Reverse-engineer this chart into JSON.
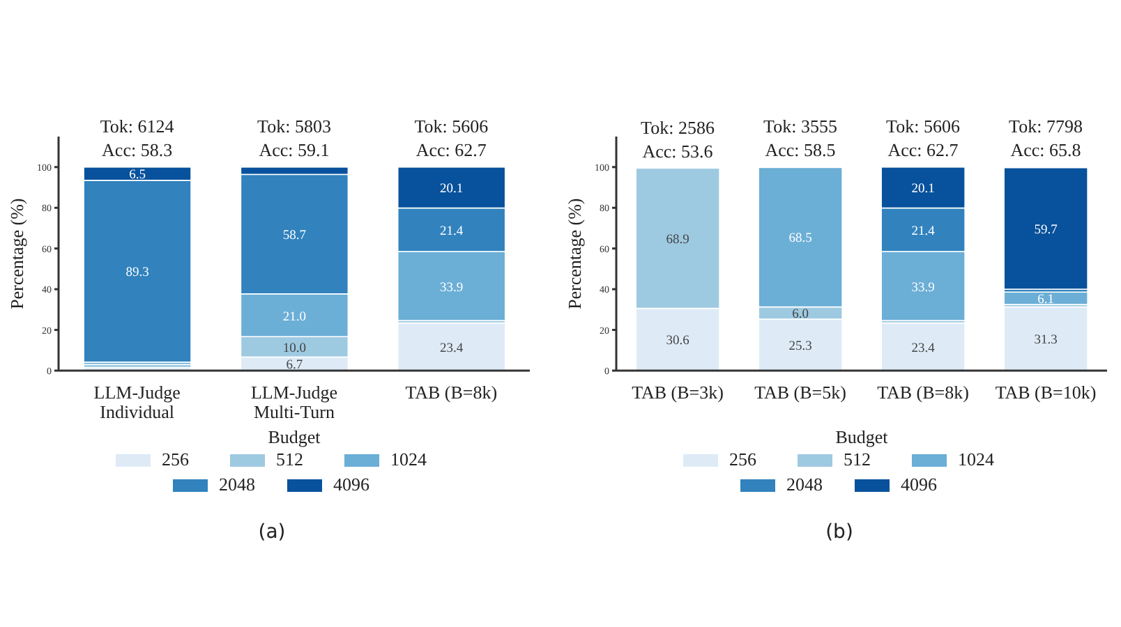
{
  "chart_data": [
    {
      "type": "bar",
      "stacked": true,
      "categories": [
        "LLM-Judge\nIndividual",
        "LLM-Judge\nMulti-Turn",
        "TAB (B=8k)"
      ],
      "xlabel": "Budget",
      "ylabel": "Percentage (%)",
      "ylim": [
        0,
        115
      ],
      "yticks": [
        0,
        20,
        40,
        60,
        80,
        100
      ],
      "legend": "bottom",
      "grid": false,
      "series": [
        {
          "name": "256",
          "color": "#deebf7",
          "values": [
            1.5,
            6.7,
            23.4
          ],
          "value_labels": [
            null,
            "6.7",
            "23.4"
          ]
        },
        {
          "name": "512",
          "color": "#9ecae1",
          "values": [
            1.5,
            10.0,
            1.2
          ],
          "value_labels": [
            null,
            "10.0",
            null
          ]
        },
        {
          "name": "1024",
          "color": "#6baed6",
          "values": [
            1.2,
            21.0,
            33.9
          ],
          "value_labels": [
            null,
            "21.0",
            "33.9"
          ]
        },
        {
          "name": "2048",
          "color": "#3182bd",
          "values": [
            89.3,
            58.7,
            21.4
          ],
          "value_labels": [
            "89.3",
            "58.7",
            "21.4"
          ]
        },
        {
          "name": "4096",
          "color": "#08519c",
          "values": [
            6.5,
            3.6,
            20.1
          ],
          "value_labels": [
            "6.5",
            null,
            "20.1"
          ]
        }
      ],
      "annotations": [
        "Tok: 6124\nAcc: 58.3",
        "Tok: 5803\nAcc: 59.1",
        "Tok: 5606\nAcc: 62.7",
        "(a)"
      ]
    },
    {
      "type": "bar",
      "stacked": true,
      "categories": [
        "TAB (B=3k)",
        "TAB (B=5k)",
        "TAB (B=8k)",
        "TAB (B=10k)"
      ],
      "xlabel": "Budget",
      "ylabel": "Percentage (%)",
      "ylim": [
        0,
        115
      ],
      "yticks": [
        0,
        20,
        40,
        60,
        80,
        100
      ],
      "legend": "bottom",
      "grid": false,
      "series": [
        {
          "name": "256",
          "color": "#deebf7",
          "values": [
            30.6,
            25.3,
            23.4,
            31.3
          ],
          "value_labels": [
            "30.6",
            "25.3",
            "23.4",
            "31.3"
          ]
        },
        {
          "name": "512",
          "color": "#9ecae1",
          "values": [
            68.9,
            6.0,
            1.2,
            1.2
          ],
          "value_labels": [
            "68.9",
            "6.0",
            null,
            null
          ]
        },
        {
          "name": "1024",
          "color": "#6baed6",
          "values": [
            0,
            68.5,
            33.9,
            6.1
          ],
          "value_labels": [
            null,
            "68.5",
            "33.9",
            "6.1"
          ]
        },
        {
          "name": "2048",
          "color": "#3182bd",
          "values": [
            0,
            0,
            21.4,
            1.4
          ],
          "value_labels": [
            null,
            null,
            "21.4",
            null
          ]
        },
        {
          "name": "4096",
          "color": "#08519c",
          "values": [
            0,
            0,
            20.1,
            59.7
          ],
          "value_labels": [
            null,
            null,
            "20.1",
            "59.7"
          ]
        }
      ],
      "annotations": [
        "Tok: 2586\nAcc: 53.6",
        "Tok: 3555\nAcc: 58.5",
        "Tok: 5606\nAcc: 62.7",
        "Tok: 7798\nAcc: 65.8",
        "(b)"
      ]
    }
  ]
}
